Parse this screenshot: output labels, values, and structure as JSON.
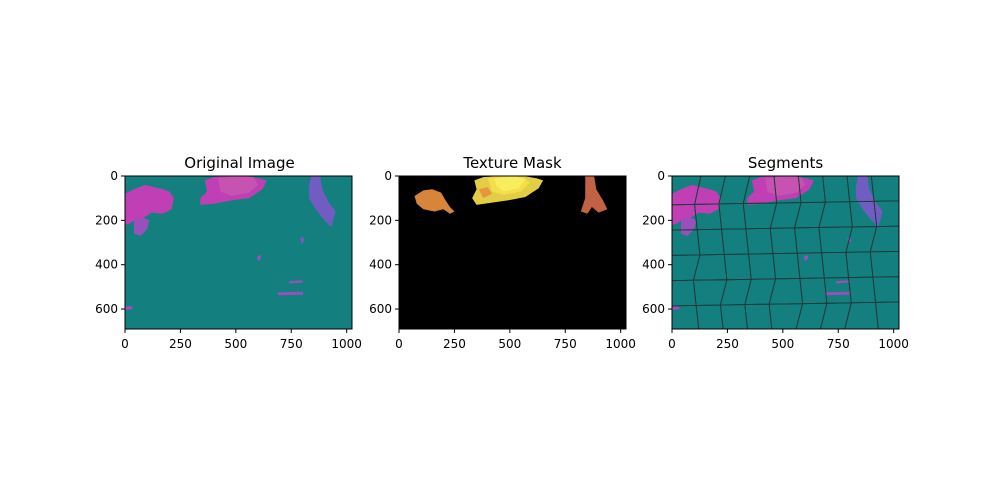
{
  "figure": {
    "background": "#ffffff"
  },
  "chart_data": [
    {
      "type": "heatmap",
      "title": "Original Image",
      "image_size": [
        1024,
        690
      ],
      "xticks": [
        0,
        250,
        500,
        750,
        1000
      ],
      "yticks": [
        0,
        200,
        400,
        600
      ],
      "background_color": "#137f7e",
      "blob_colors": [
        "#d03ab8",
        "#a64cc0",
        "#7a5ac8",
        "#c855b0"
      ]
    },
    {
      "type": "heatmap",
      "title": "Texture Mask",
      "image_size": [
        1024,
        690
      ],
      "xticks": [
        0,
        250,
        500,
        750,
        1000
      ],
      "yticks": [
        0,
        200,
        400,
        600
      ],
      "background_color": "#000000",
      "blob_colors": [
        "#f5e04a",
        "#e89040",
        "#d26a4a",
        "#c85a4a"
      ]
    },
    {
      "type": "heatmap",
      "title": "Segments",
      "image_size": [
        1024,
        690
      ],
      "xticks": [
        0,
        250,
        500,
        750,
        1000
      ],
      "yticks": [
        0,
        200,
        400,
        600
      ],
      "background_color": "#137f7e",
      "boundary_color": "#1f3a3a",
      "blob_colors": [
        "#d03ab8",
        "#a64cc0",
        "#7a5ac8",
        "#c855b0"
      ]
    }
  ]
}
